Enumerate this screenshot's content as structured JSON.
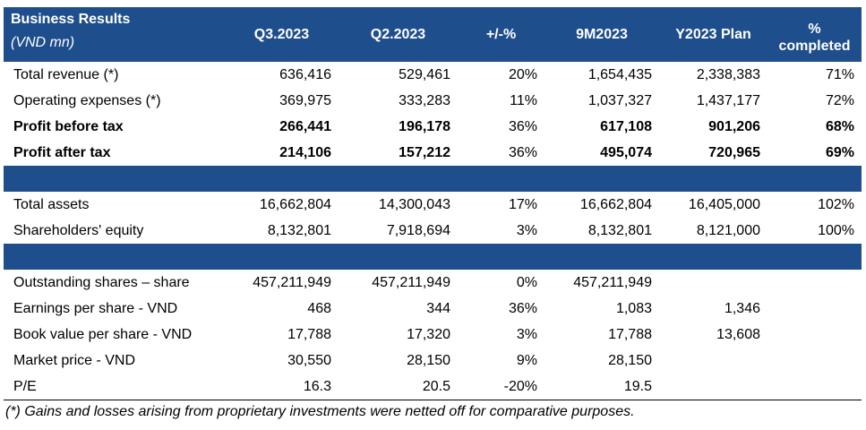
{
  "header": {
    "title": "Business Results",
    "subtitle": "(VND mn)",
    "columns": [
      "Q3.2023",
      "Q2.2023",
      "+/-%",
      "9M2023",
      "Y2023 Plan"
    ],
    "pct_line1": "%",
    "pct_line2": "completed"
  },
  "rows1": [
    {
      "label": "Total revenue (*)",
      "v": [
        "636,416",
        "529,461",
        "20%",
        "1,654,435",
        "2,338,383",
        "71%"
      ]
    },
    {
      "label": "Operating expenses (*)",
      "v": [
        "369,975",
        "333,283",
        "11%",
        "1,037,327",
        "1,437,177",
        "72%"
      ]
    },
    {
      "label": "Profit before tax",
      "v": [
        "266,441",
        "196,178",
        "36%",
        "617,108",
        "901,206",
        "68%"
      ]
    },
    {
      "label": "Profit after tax",
      "v": [
        "214,106",
        "157,212",
        "36%",
        "495,074",
        "720,965",
        "69%"
      ]
    }
  ],
  "rows2": [
    {
      "label": "Total assets",
      "v": [
        "16,662,804",
        "14,300,043",
        "17%",
        "16,662,804",
        "16,405,000",
        "102%"
      ]
    },
    {
      "label": "Shareholders' equity",
      "v": [
        "8,132,801",
        "7,918,694",
        "3%",
        "8,132,801",
        "8,121,000",
        "100%"
      ]
    }
  ],
  "rows3": [
    {
      "label": "Outstanding shares – share",
      "v": [
        "457,211,949",
        "457,211,949",
        "0%",
        "457,211,949",
        "",
        ""
      ]
    },
    {
      "label": "Earnings per share - VND",
      "v": [
        "468",
        "344",
        "36%",
        "1,083",
        "1,346",
        ""
      ]
    },
    {
      "label": "Book value per share - VND",
      "v": [
        "17,788",
        "17,320",
        "3%",
        "17,788",
        "13,608",
        ""
      ]
    },
    {
      "label": "Market price - VND",
      "v": [
        "30,550",
        "28,150",
        "9%",
        "28,150",
        "",
        ""
      ]
    },
    {
      "label": "P/E",
      "v": [
        "16.3",
        "20.5",
        "-20%",
        "19.5",
        "",
        ""
      ]
    }
  ],
  "footnote": "(*) Gains and losses arising from proprietary investments were netted off for comparative purposes.",
  "colors": {
    "header_bg": "#1f4e8c",
    "header_text": "#ffffff"
  }
}
